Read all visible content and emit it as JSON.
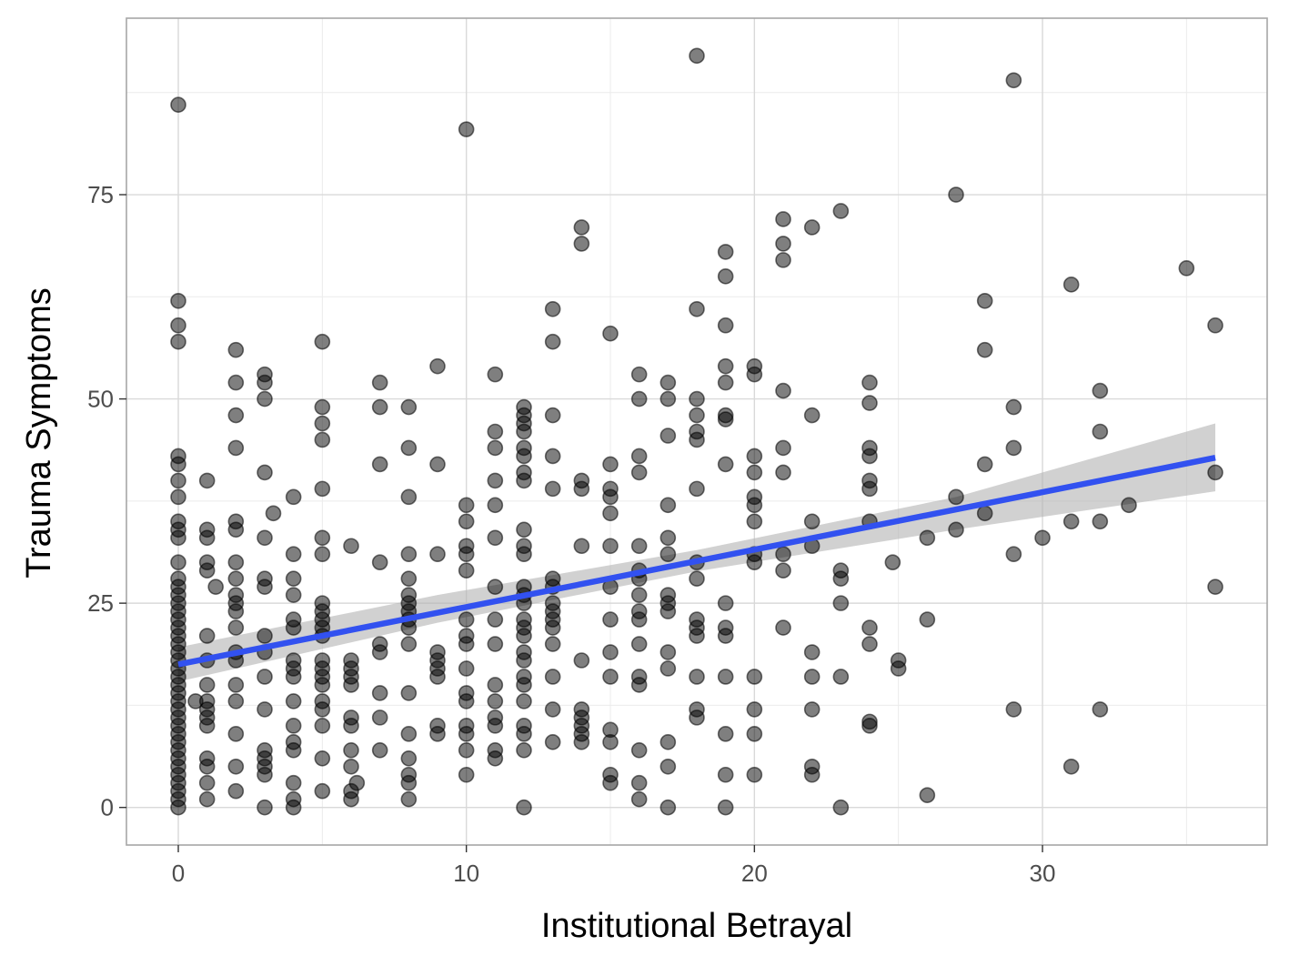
{
  "chart_data": {
    "type": "scatter",
    "title": "",
    "xlabel": "Institutional Betrayal",
    "ylabel": "Trauma Symptoms",
    "xlim": [
      -1.8,
      37.8
    ],
    "ylim": [
      -4.6,
      96.6
    ],
    "x_ticks": [
      0,
      10,
      20,
      30
    ],
    "x_tick_labels": [
      "0",
      "10",
      "20",
      "30"
    ],
    "y_ticks": [
      0,
      25,
      50,
      75
    ],
    "y_tick_labels": [
      "0",
      "25",
      "50",
      "75"
    ],
    "grid": true,
    "legend": "none",
    "point_color": "#000000",
    "point_opacity": 0.5,
    "line_color": "#3251f0",
    "band_color": "#b3b3b3",
    "trend_line": {
      "x": [
        0,
        36
      ],
      "y": [
        17.5,
        42.8
      ]
    },
    "confidence_band": {
      "x": [
        0,
        9,
        18,
        27,
        36
      ],
      "lower": [
        15.4,
        22.6,
        28.9,
        34.0,
        38.7
      ],
      "upper": [
        19.6,
        26.0,
        31.5,
        38.0,
        47.0
      ]
    },
    "points": [
      [
        0,
        86
      ],
      [
        0,
        62
      ],
      [
        0,
        59
      ],
      [
        0,
        57
      ],
      [
        0,
        43
      ],
      [
        0,
        42
      ],
      [
        0,
        40
      ],
      [
        0,
        38
      ],
      [
        0,
        35
      ],
      [
        0,
        34
      ],
      [
        0,
        33
      ],
      [
        0,
        30
      ],
      [
        0,
        28
      ],
      [
        0,
        27
      ],
      [
        0,
        26
      ],
      [
        0,
        25
      ],
      [
        0,
        24
      ],
      [
        0,
        23
      ],
      [
        0,
        22
      ],
      [
        0,
        21
      ],
      [
        0,
        20
      ],
      [
        0,
        19
      ],
      [
        0,
        18
      ],
      [
        0,
        17
      ],
      [
        0,
        16
      ],
      [
        0,
        15
      ],
      [
        0,
        14
      ],
      [
        0,
        13
      ],
      [
        0,
        12
      ],
      [
        0,
        11
      ],
      [
        0,
        10
      ],
      [
        0,
        9
      ],
      [
        0,
        8
      ],
      [
        0,
        7
      ],
      [
        0,
        6
      ],
      [
        0,
        5
      ],
      [
        0,
        4
      ],
      [
        0,
        3
      ],
      [
        0,
        2
      ],
      [
        0,
        1
      ],
      [
        0,
        0
      ],
      [
        0.6,
        13
      ],
      [
        1,
        40
      ],
      [
        1,
        34
      ],
      [
        1,
        33
      ],
      [
        1,
        30
      ],
      [
        1,
        29
      ],
      [
        1,
        21
      ],
      [
        1,
        18
      ],
      [
        1,
        15
      ],
      [
        1,
        13
      ],
      [
        1,
        12
      ],
      [
        1,
        11
      ],
      [
        1,
        10
      ],
      [
        1,
        6
      ],
      [
        1,
        5
      ],
      [
        1,
        3
      ],
      [
        1,
        1
      ],
      [
        1.3,
        27
      ],
      [
        2,
        56
      ],
      [
        2,
        52
      ],
      [
        2,
        48
      ],
      [
        2,
        44
      ],
      [
        2,
        35
      ],
      [
        2,
        34
      ],
      [
        2,
        30
      ],
      [
        2,
        28
      ],
      [
        2,
        26
      ],
      [
        2,
        25
      ],
      [
        2,
        24
      ],
      [
        2,
        22
      ],
      [
        2,
        19
      ],
      [
        2,
        18
      ],
      [
        2,
        15
      ],
      [
        2,
        13
      ],
      [
        2,
        9
      ],
      [
        2,
        5
      ],
      [
        2,
        2
      ],
      [
        3,
        53
      ],
      [
        3,
        52
      ],
      [
        3,
        50
      ],
      [
        3,
        41
      ],
      [
        3,
        33
      ],
      [
        3,
        28
      ],
      [
        3,
        27
      ],
      [
        3,
        21
      ],
      [
        3,
        19
      ],
      [
        3,
        16
      ],
      [
        3,
        12
      ],
      [
        3,
        7
      ],
      [
        3,
        6
      ],
      [
        3,
        5
      ],
      [
        3,
        4
      ],
      [
        3,
        0
      ],
      [
        3.3,
        36
      ],
      [
        4,
        38
      ],
      [
        4,
        31
      ],
      [
        4,
        28
      ],
      [
        4,
        26
      ],
      [
        4,
        23
      ],
      [
        4,
        22
      ],
      [
        4,
        18
      ],
      [
        4,
        17
      ],
      [
        4,
        16
      ],
      [
        4,
        13
      ],
      [
        4,
        10
      ],
      [
        4,
        8
      ],
      [
        4,
        7
      ],
      [
        4,
        3
      ],
      [
        4,
        1
      ],
      [
        4,
        0
      ],
      [
        5,
        57
      ],
      [
        5,
        49
      ],
      [
        5,
        47
      ],
      [
        5,
        45
      ],
      [
        5,
        39
      ],
      [
        5,
        33
      ],
      [
        5,
        31
      ],
      [
        5,
        25
      ],
      [
        5,
        24
      ],
      [
        5,
        23
      ],
      [
        5,
        22
      ],
      [
        5,
        21
      ],
      [
        5,
        18
      ],
      [
        5,
        17
      ],
      [
        5,
        16
      ],
      [
        5,
        15
      ],
      [
        5,
        13
      ],
      [
        5,
        12
      ],
      [
        5,
        10
      ],
      [
        5,
        6
      ],
      [
        5,
        2
      ],
      [
        6,
        32
      ],
      [
        6,
        18
      ],
      [
        6,
        17
      ],
      [
        6,
        16
      ],
      [
        6,
        15
      ],
      [
        6,
        11
      ],
      [
        6,
        10
      ],
      [
        6,
        7
      ],
      [
        6,
        5
      ],
      [
        6,
        2
      ],
      [
        6,
        1
      ],
      [
        6.2,
        3
      ],
      [
        7,
        52
      ],
      [
        7,
        49
      ],
      [
        7,
        42
      ],
      [
        7,
        30
      ],
      [
        7,
        20
      ],
      [
        7,
        19
      ],
      [
        7,
        14
      ],
      [
        7,
        11
      ],
      [
        7,
        7
      ],
      [
        8,
        49
      ],
      [
        8,
        44
      ],
      [
        8,
        38
      ],
      [
        8,
        31
      ],
      [
        8,
        28
      ],
      [
        8,
        26
      ],
      [
        8,
        25
      ],
      [
        8,
        24
      ],
      [
        8,
        23
      ],
      [
        8,
        22
      ],
      [
        8,
        20
      ],
      [
        8,
        14
      ],
      [
        8,
        9
      ],
      [
        8,
        6
      ],
      [
        8,
        4
      ],
      [
        8,
        3
      ],
      [
        8,
        1
      ],
      [
        9,
        54
      ],
      [
        9,
        42
      ],
      [
        9,
        31
      ],
      [
        9,
        19
      ],
      [
        9,
        18
      ],
      [
        9,
        17
      ],
      [
        9,
        16
      ],
      [
        9,
        10
      ],
      [
        9,
        9
      ],
      [
        10,
        83
      ],
      [
        10,
        37
      ],
      [
        10,
        35
      ],
      [
        10,
        32
      ],
      [
        10,
        31
      ],
      [
        10,
        29
      ],
      [
        10,
        23
      ],
      [
        10,
        21
      ],
      [
        10,
        20
      ],
      [
        10,
        17
      ],
      [
        10,
        14
      ],
      [
        10,
        13
      ],
      [
        10,
        10
      ],
      [
        10,
        9
      ],
      [
        10,
        7
      ],
      [
        10,
        4
      ],
      [
        11,
        53
      ],
      [
        11,
        46
      ],
      [
        11,
        44
      ],
      [
        11,
        40
      ],
      [
        11,
        37
      ],
      [
        11,
        33
      ],
      [
        11,
        27
      ],
      [
        11,
        23
      ],
      [
        11,
        20
      ],
      [
        11,
        15
      ],
      [
        11,
        13
      ],
      [
        11,
        11
      ],
      [
        11,
        10
      ],
      [
        11,
        7
      ],
      [
        11,
        6
      ],
      [
        12,
        49
      ],
      [
        12,
        48
      ],
      [
        12,
        47
      ],
      [
        12,
        46
      ],
      [
        12,
        44
      ],
      [
        12,
        43
      ],
      [
        12,
        41
      ],
      [
        12,
        40
      ],
      [
        12,
        34
      ],
      [
        12,
        32
      ],
      [
        12,
        31
      ],
      [
        12,
        27
      ],
      [
        12,
        26
      ],
      [
        12,
        25
      ],
      [
        12,
        23
      ],
      [
        12,
        22
      ],
      [
        12,
        21
      ],
      [
        12,
        19
      ],
      [
        12,
        18
      ],
      [
        12,
        16
      ],
      [
        12,
        15
      ],
      [
        12,
        13
      ],
      [
        12,
        10
      ],
      [
        12,
        9
      ],
      [
        12,
        7
      ],
      [
        12,
        0
      ],
      [
        13,
        61
      ],
      [
        13,
        57
      ],
      [
        13,
        48
      ],
      [
        13,
        43
      ],
      [
        13,
        39
      ],
      [
        13,
        28
      ],
      [
        13,
        27
      ],
      [
        13,
        25
      ],
      [
        13,
        24
      ],
      [
        13,
        23
      ],
      [
        13,
        22
      ],
      [
        13,
        20
      ],
      [
        13,
        16
      ],
      [
        13,
        12
      ],
      [
        13,
        8
      ],
      [
        14,
        71
      ],
      [
        14,
        69
      ],
      [
        14,
        40
      ],
      [
        14,
        39
      ],
      [
        14,
        32
      ],
      [
        14,
        18
      ],
      [
        14,
        12
      ],
      [
        14,
        11
      ],
      [
        14,
        10
      ],
      [
        14,
        9
      ],
      [
        14,
        8
      ],
      [
        15,
        58
      ],
      [
        15,
        42
      ],
      [
        15,
        39
      ],
      [
        15,
        38
      ],
      [
        15,
        36
      ],
      [
        15,
        32
      ],
      [
        15,
        27
      ],
      [
        15,
        23
      ],
      [
        15,
        19
      ],
      [
        15,
        16
      ],
      [
        15,
        9.5
      ],
      [
        15,
        8
      ],
      [
        15,
        4
      ],
      [
        15,
        3
      ],
      [
        16,
        53
      ],
      [
        16,
        50
      ],
      [
        16,
        43
      ],
      [
        16,
        41
      ],
      [
        16,
        32
      ],
      [
        16,
        29
      ],
      [
        16,
        28
      ],
      [
        16,
        26
      ],
      [
        16,
        24
      ],
      [
        16,
        23
      ],
      [
        16,
        20
      ],
      [
        16,
        16
      ],
      [
        16,
        15
      ],
      [
        16,
        7
      ],
      [
        16,
        3
      ],
      [
        16,
        1
      ],
      [
        17,
        52
      ],
      [
        17,
        50
      ],
      [
        17,
        45.5
      ],
      [
        17,
        37
      ],
      [
        17,
        33
      ],
      [
        17,
        31
      ],
      [
        17,
        26
      ],
      [
        17,
        25
      ],
      [
        17,
        24
      ],
      [
        17,
        19
      ],
      [
        17,
        17
      ],
      [
        17,
        8
      ],
      [
        17,
        5
      ],
      [
        17,
        0
      ],
      [
        18,
        92
      ],
      [
        18,
        61
      ],
      [
        18,
        50
      ],
      [
        18,
        48
      ],
      [
        18,
        46
      ],
      [
        18,
        45
      ],
      [
        18,
        39
      ],
      [
        18,
        30
      ],
      [
        18,
        28
      ],
      [
        18,
        23
      ],
      [
        18,
        22
      ],
      [
        18,
        21
      ],
      [
        18,
        16
      ],
      [
        18,
        12
      ],
      [
        18,
        11
      ],
      [
        19,
        68
      ],
      [
        19,
        65
      ],
      [
        19,
        59
      ],
      [
        19,
        54
      ],
      [
        19,
        52
      ],
      [
        19,
        48
      ],
      [
        19,
        47.5
      ],
      [
        19,
        42
      ],
      [
        19,
        25
      ],
      [
        19,
        22
      ],
      [
        19,
        21
      ],
      [
        19,
        16
      ],
      [
        19,
        9
      ],
      [
        19,
        4
      ],
      [
        19,
        0
      ],
      [
        20,
        54
      ],
      [
        20,
        53
      ],
      [
        20,
        43
      ],
      [
        20,
        41
      ],
      [
        20,
        38
      ],
      [
        20,
        37
      ],
      [
        20,
        35
      ],
      [
        20,
        31
      ],
      [
        20,
        30
      ],
      [
        20,
        16
      ],
      [
        20,
        12
      ],
      [
        20,
        9
      ],
      [
        20,
        4
      ],
      [
        21,
        72
      ],
      [
        21,
        69
      ],
      [
        21,
        67
      ],
      [
        21,
        51
      ],
      [
        21,
        44
      ],
      [
        21,
        41
      ],
      [
        21,
        31
      ],
      [
        21,
        29
      ],
      [
        21,
        22
      ],
      [
        22,
        71
      ],
      [
        22,
        48
      ],
      [
        22,
        35
      ],
      [
        22,
        32
      ],
      [
        22,
        19
      ],
      [
        22,
        16
      ],
      [
        22,
        12
      ],
      [
        22,
        5
      ],
      [
        22,
        4
      ],
      [
        23,
        73
      ],
      [
        23,
        29
      ],
      [
        23,
        28
      ],
      [
        23,
        25
      ],
      [
        23,
        16
      ],
      [
        23,
        0
      ],
      [
        24,
        52
      ],
      [
        24,
        49.5
      ],
      [
        24,
        44
      ],
      [
        24,
        43
      ],
      [
        24,
        40
      ],
      [
        24,
        39
      ],
      [
        24,
        35
      ],
      [
        24,
        22
      ],
      [
        24,
        20
      ],
      [
        24,
        10.5
      ],
      [
        24,
        10
      ],
      [
        24.8,
        30
      ],
      [
        25,
        18
      ],
      [
        25,
        17
      ],
      [
        26,
        33
      ],
      [
        26,
        23
      ],
      [
        26,
        1.5
      ],
      [
        27,
        75
      ],
      [
        27,
        38
      ],
      [
        27,
        34
      ],
      [
        28,
        62
      ],
      [
        28,
        56
      ],
      [
        28,
        42
      ],
      [
        28,
        36
      ],
      [
        29,
        89
      ],
      [
        29,
        49
      ],
      [
        29,
        44
      ],
      [
        29,
        31
      ],
      [
        29,
        12
      ],
      [
        30,
        33
      ],
      [
        31,
        64
      ],
      [
        31,
        35
      ],
      [
        31,
        5
      ],
      [
        32,
        51
      ],
      [
        32,
        46
      ],
      [
        32,
        35
      ],
      [
        32,
        12
      ],
      [
        33,
        37
      ],
      [
        35,
        66
      ],
      [
        36,
        59
      ],
      [
        36,
        41
      ],
      [
        36,
        27
      ]
    ]
  }
}
